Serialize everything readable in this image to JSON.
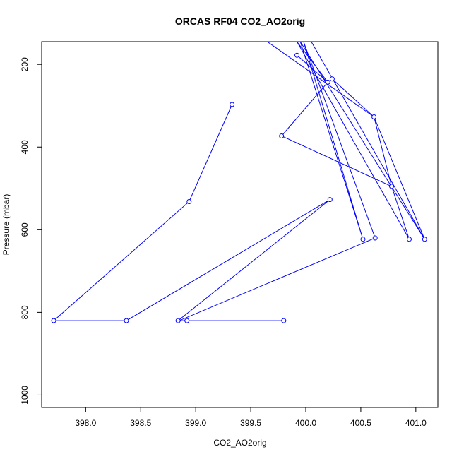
{
  "chart_data": {
    "type": "line",
    "title": "ORCAS RF04 CO2_AO2orig",
    "xlabel": "CO2_AO2orig",
    "ylabel": "Pressure (mbar)",
    "xlim": [
      397.6,
      401.2
    ],
    "ylim": [
      1030,
      145
    ],
    "y_inverted": true,
    "xticks": [
      398.0,
      398.5,
      399.0,
      399.5,
      400.0,
      400.5,
      401.0
    ],
    "xtick_labels": [
      "398.0",
      "398.5",
      "399.0",
      "399.5",
      "400.0",
      "400.5",
      "401.0"
    ],
    "yticks": [
      200,
      400,
      600,
      800,
      1000
    ],
    "ytick_labels": [
      "200",
      "400",
      "600",
      "800",
      "1000"
    ],
    "grid": false,
    "series": [
      {
        "color": "#0000ff",
        "x": [
          399.33,
          398.94,
          397.71,
          398.37,
          400.22,
          398.84,
          398.92,
          399.8
        ],
        "y": [
          297,
          532,
          820,
          820,
          527,
          820,
          820,
          820
        ]
      },
      {
        "color": "#0000ff",
        "x": [
          399.65,
          400.62,
          400.78,
          400.94,
          399.92,
          400.2,
          400.24,
          400.62,
          401.08,
          399.95,
          400.52,
          399.98,
          400.63,
          398.85
        ],
        "y": [
          145,
          327,
          495,
          623,
          145,
          243,
          235,
          327,
          623,
          145,
          623,
          145,
          620,
          820
        ]
      },
      {
        "color": "#0000ff",
        "x": [
          400.78,
          399.78,
          400.2,
          399.92
        ],
        "y": [
          495,
          373,
          243,
          178
        ]
      },
      {
        "color": "#0000ff",
        "x": [
          400.05,
          401.08
        ],
        "y": [
          145,
          623
        ]
      }
    ],
    "markers": {
      "x": [
        399.33,
        398.94,
        397.71,
        398.37,
        400.22,
        398.84,
        398.92,
        399.8,
        400.62,
        400.78,
        400.94,
        400.2,
        400.24,
        401.08,
        400.52,
        400.63,
        399.78,
        399.92
      ],
      "y": [
        297,
        532,
        820,
        820,
        527,
        820,
        820,
        820,
        327,
        495,
        623,
        243,
        235,
        623,
        623,
        620,
        373,
        178
      ],
      "color": "#0000ff"
    }
  }
}
